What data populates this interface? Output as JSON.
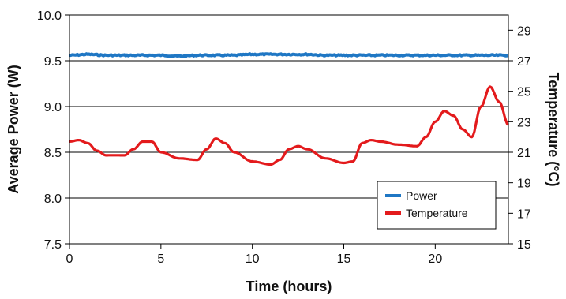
{
  "chart_data": {
    "type": "line",
    "title": "",
    "xlabel": "Time (hours)",
    "ylabel": "Average Power (W)",
    "y2label": "Temperature (°C)",
    "xlim": [
      0,
      24
    ],
    "ylim": [
      7.5,
      10.0
    ],
    "y2lim": [
      15,
      30
    ],
    "xticks": [
      "0",
      "5",
      "10",
      "15",
      "20"
    ],
    "yticks": [
      "7.5",
      "8.0",
      "8.5",
      "9.0",
      "9.5",
      "10.0"
    ],
    "y2ticks": [
      "15",
      "17",
      "19",
      "21",
      "23",
      "25",
      "27",
      "29"
    ],
    "grid": "horizontal",
    "legend_position": "bottom-right",
    "colors": {
      "Power": "#1f77c4",
      "Temperature": "#e31a1c"
    },
    "series": [
      {
        "name": "Power",
        "axis": "left",
        "x": [
          0,
          1,
          2,
          3,
          4,
          5,
          6,
          7,
          8,
          9,
          10,
          11,
          12,
          13,
          14,
          15,
          16,
          17,
          18,
          19,
          20,
          21,
          22,
          23,
          24
        ],
        "y": [
          9.56,
          9.57,
          9.56,
          9.56,
          9.56,
          9.56,
          9.55,
          9.56,
          9.56,
          9.56,
          9.57,
          9.57,
          9.57,
          9.57,
          9.56,
          9.56,
          9.56,
          9.56,
          9.56,
          9.56,
          9.56,
          9.56,
          9.56,
          9.56,
          9.56
        ]
      },
      {
        "name": "Temperature",
        "axis": "right",
        "x": [
          0,
          0.5,
          1,
          1.5,
          2,
          3,
          3.5,
          4,
          4.5,
          5,
          6,
          7,
          7.5,
          8,
          8.5,
          9,
          10,
          11,
          11.5,
          12,
          12.5,
          13,
          14,
          15,
          15.5,
          16,
          16.5,
          17,
          18,
          19,
          19.5,
          20,
          20.5,
          21,
          21.5,
          22,
          22.5,
          23,
          23.5,
          24
        ],
        "y": [
          21.7,
          21.8,
          21.6,
          21.1,
          20.8,
          20.8,
          21.2,
          21.7,
          21.7,
          21.0,
          20.6,
          20.5,
          21.2,
          21.9,
          21.6,
          21.0,
          20.4,
          20.2,
          20.5,
          21.2,
          21.4,
          21.2,
          20.6,
          20.3,
          20.4,
          21.6,
          21.8,
          21.7,
          21.5,
          21.4,
          22.0,
          23.0,
          23.7,
          23.4,
          22.5,
          22.0,
          24.0,
          25.3,
          24.3,
          22.8
        ]
      }
    ]
  }
}
